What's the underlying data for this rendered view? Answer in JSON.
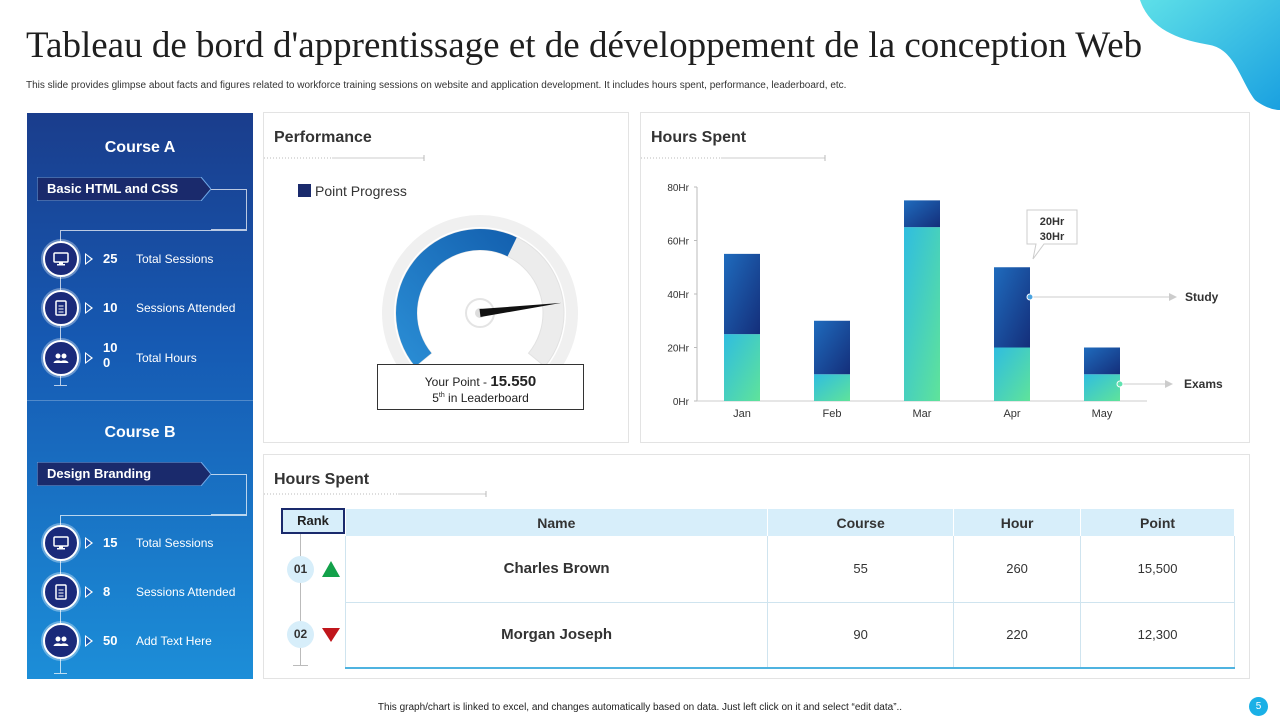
{
  "title": "Tableau de bord d'apprentissage et de développement de la conception Web",
  "subtitle": "This slide provides glimpse about facts and figures related to workforce training sessions on website and application development. It includes hours spent, performance, leaderboard, etc.",
  "courses": [
    {
      "title": "Course A",
      "ribbon": "Basic HTML and CSS",
      "stats": [
        {
          "icon": "monitor-icon",
          "value": "25",
          "label": "Total Sessions"
        },
        {
          "icon": "clipboard-icon",
          "value": "10",
          "label": "Sessions Attended"
        },
        {
          "icon": "users-icon",
          "value": "100",
          "label": "Total Hours"
        }
      ]
    },
    {
      "title": "Course B",
      "ribbon": "Design Branding",
      "stats": [
        {
          "icon": "monitor-icon",
          "value": "15",
          "label": "Total Sessions"
        },
        {
          "icon": "clipboard-icon",
          "value": "8",
          "label": "Sessions Attended"
        },
        {
          "icon": "users-icon",
          "value": "50",
          "label": "Add Text Here"
        }
      ]
    }
  ],
  "performance": {
    "title": "Performance",
    "legend": "Point Progress",
    "gauge_fraction": 0.82,
    "your_point_label": "Your Point - ",
    "your_point_value": "15.550",
    "rank_num": "5",
    "rank_suffix": "th",
    "rank_text": " in Leaderboard"
  },
  "hours_chart": {
    "title": "Hours Spent",
    "callout_line1": "20Hr",
    "callout_line2": "30Hr",
    "legend_study": "Study",
    "legend_exams": "Exams"
  },
  "chart_data": {
    "type": "bar",
    "stacked": true,
    "categories": [
      "Jan",
      "Feb",
      "Mar",
      "Apr",
      "May"
    ],
    "series": [
      {
        "name": "Exams",
        "values": [
          25,
          10,
          65,
          20,
          10
        ]
      },
      {
        "name": "Study",
        "values": [
          30,
          20,
          10,
          30,
          10
        ]
      }
    ],
    "ylim": [
      0,
      80
    ],
    "yticks": [
      "0Hr",
      "20Hr",
      "40Hr",
      "60Hr",
      "80Hr"
    ],
    "colors": {
      "Exams": "#3fd6b0",
      "Study": "#1b3f8e"
    }
  },
  "leaderboard": {
    "title": "Hours Spent",
    "rank_header": "Rank",
    "columns": [
      "Name",
      "Course",
      "Hour",
      "Point"
    ],
    "rows": [
      {
        "rank": "01",
        "trend": "up",
        "name": "Charles Brown",
        "course": "55",
        "hour": "260",
        "point": "15,500"
      },
      {
        "rank": "02",
        "trend": "down",
        "name": "Morgan Joseph",
        "course": "90",
        "hour": "220",
        "point": "12,300"
      }
    ]
  },
  "footer": "This graph/chart is linked to excel, and changes automatically based on data. Just left click on it and select “edit data”..",
  "page_number": "5"
}
